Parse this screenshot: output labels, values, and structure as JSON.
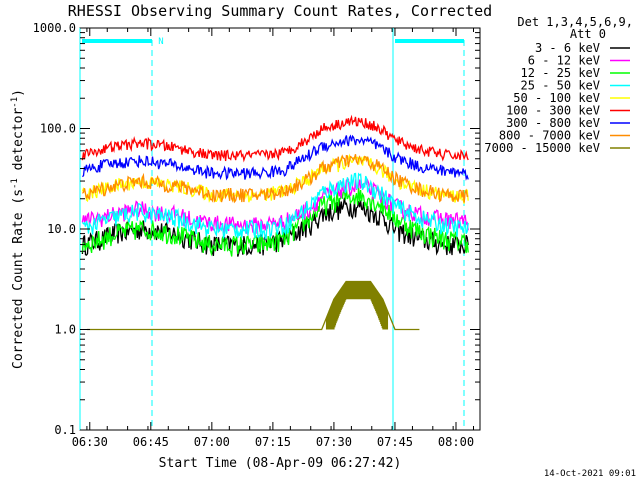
{
  "chart_data": {
    "type": "line",
    "title": "RHESSI Observing Summary Count Rates, Corrected",
    "xlabel": "Start Time (08-Apr-09 06:27:42)",
    "ylabel_main": "Corrected Count Rate (s",
    "ylabel_sup1": "-1",
    "ylabel_mid": " detector",
    "ylabel_sup2": "-1",
    "ylabel_end": ")",
    "y_scale": "log",
    "ylim": [
      0.1,
      1000
    ],
    "xlim_minutes": [
      6.46,
      8.0983
    ],
    "x_ticks": [
      {
        "value": 6.5,
        "label": "06:30"
      },
      {
        "value": 6.75,
        "label": "06:45"
      },
      {
        "value": 7.0,
        "label": "07:00"
      },
      {
        "value": 7.25,
        "label": "07:15"
      },
      {
        "value": 7.5,
        "label": "07:30"
      },
      {
        "value": 7.75,
        "label": "07:45"
      },
      {
        "value": 8.0,
        "label": "08:00"
      }
    ],
    "y_ticks": [
      {
        "value": 1000,
        "label": "1000.0"
      },
      {
        "value": 100,
        "label": "100.0"
      },
      {
        "value": 10,
        "label": "10.0"
      },
      {
        "value": 1,
        "label": "1.0"
      },
      {
        "value": 0.1,
        "label": "0.1"
      }
    ],
    "legend_header": [
      "Det 1,3,4,5,6,9,",
      "Att 0"
    ],
    "legend_position": "right",
    "series": [
      {
        "name": "3 - 6 keV",
        "color": "#000000",
        "x": [
          6.47,
          6.55,
          6.6,
          6.7,
          6.75,
          6.85,
          6.95,
          7.0,
          7.1,
          7.2,
          7.3,
          7.4,
          7.45,
          7.55,
          7.6,
          7.65,
          7.7,
          7.75,
          7.85,
          7.95,
          8.05
        ],
        "y": [
          7,
          8,
          9,
          10,
          10,
          9,
          7.5,
          7,
          7,
          7,
          8,
          11,
          14,
          17,
          17,
          15,
          13,
          10,
          8,
          7,
          7
        ]
      },
      {
        "name": "6 - 12 keV",
        "color": "#ff00ff",
        "x": [
          6.47,
          6.55,
          6.6,
          6.7,
          6.75,
          6.85,
          6.95,
          7.0,
          7.1,
          7.2,
          7.3,
          7.4,
          7.45,
          7.55,
          7.6,
          7.65,
          7.7,
          7.75,
          7.85,
          7.95,
          8.05
        ],
        "y": [
          12,
          13,
          14,
          16,
          15,
          14,
          12,
          11.5,
          11,
          11,
          12,
          16,
          21,
          26,
          27,
          25,
          21,
          17,
          14,
          12.5,
          12
        ]
      },
      {
        "name": "12 - 25 keV",
        "color": "#00ff00",
        "x": [
          6.47,
          6.55,
          6.6,
          6.7,
          6.75,
          6.85,
          6.95,
          7.0,
          7.1,
          7.2,
          7.3,
          7.4,
          7.45,
          7.55,
          7.6,
          7.65,
          7.7,
          7.75,
          7.85,
          7.95,
          8.05
        ],
        "y": [
          7,
          8,
          9,
          10,
          10,
          9,
          7.5,
          7,
          7,
          7,
          8,
          13,
          17,
          21,
          22,
          20,
          17,
          13,
          9.5,
          8,
          7.5
        ]
      },
      {
        "name": "25 - 50 keV",
        "color": "#00ffff",
        "x": [
          6.47,
          6.55,
          6.6,
          6.7,
          6.75,
          6.85,
          6.95,
          7.0,
          7.1,
          7.2,
          7.3,
          7.4,
          7.45,
          7.55,
          7.6,
          7.65,
          7.7,
          7.75,
          7.85,
          7.95,
          8.05
        ],
        "y": [
          10,
          12,
          13,
          15,
          14,
          13,
          11,
          10,
          10,
          10,
          11,
          17,
          23,
          29,
          30,
          27,
          22,
          17,
          13,
          11,
          10
        ]
      },
      {
        "name": "50 - 100 keV",
        "color": "#ffff00",
        "x": [
          6.47,
          6.55,
          6.6,
          6.7,
          6.75,
          6.85,
          6.95,
          7.0,
          7.1,
          7.2,
          7.3,
          7.4,
          7.45,
          7.55,
          7.6,
          7.65,
          7.7,
          7.75,
          7.85,
          7.95,
          8.05
        ],
        "y": [
          22,
          25,
          27,
          30,
          29,
          27,
          24,
          22,
          22,
          22,
          24,
          32,
          40,
          46,
          47,
          44,
          38,
          31,
          25,
          22,
          21
        ]
      },
      {
        "name": "100 - 300 keV",
        "color": "#ff0000",
        "x": [
          6.47,
          6.55,
          6.6,
          6.7,
          6.75,
          6.85,
          6.95,
          7.0,
          7.1,
          7.2,
          7.3,
          7.4,
          7.45,
          7.55,
          7.6,
          7.65,
          7.7,
          7.75,
          7.85,
          7.95,
          8.05
        ],
        "y": [
          55,
          62,
          66,
          72,
          70,
          65,
          57,
          54,
          54,
          54,
          58,
          80,
          100,
          117,
          118,
          110,
          95,
          77,
          62,
          55,
          53
        ]
      },
      {
        "name": "300 - 800 keV",
        "color": "#0000ff",
        "x": [
          6.47,
          6.55,
          6.6,
          6.7,
          6.75,
          6.85,
          6.95,
          7.0,
          7.1,
          7.2,
          7.3,
          7.4,
          7.45,
          7.55,
          7.6,
          7.65,
          7.7,
          7.75,
          7.85,
          7.95,
          8.05
        ],
        "y": [
          38,
          43,
          45,
          48,
          47,
          43,
          38,
          36,
          36,
          36,
          39,
          55,
          67,
          76,
          77,
          72,
          62,
          52,
          42,
          38,
          36
        ]
      },
      {
        "name": "800 - 7000 keV",
        "color": "#ff8c00",
        "x": [
          6.47,
          6.55,
          6.6,
          6.7,
          6.75,
          6.85,
          6.95,
          7.0,
          7.1,
          7.2,
          7.3,
          7.4,
          7.45,
          7.55,
          7.6,
          7.65,
          7.7,
          7.75,
          7.85,
          7.95,
          8.05
        ],
        "y": [
          22,
          25,
          27,
          30,
          29,
          27,
          24,
          22,
          22,
          22,
          24,
          32,
          40,
          48,
          49,
          46,
          40,
          32,
          25,
          22,
          21
        ]
      },
      {
        "name": "7000 - 15000 keV",
        "color": "#808000",
        "x": [
          6.4883,
          6.5,
          6.6,
          6.7,
          6.75,
          6.78,
          6.8,
          6.85,
          7.1,
          7.2,
          7.3,
          7.45,
          7.5,
          7.55,
          7.6,
          7.65,
          7.7,
          7.75,
          7.8,
          7.85
        ],
        "y": [
          1,
          1,
          1,
          1,
          1,
          1,
          1,
          1,
          1,
          1,
          1,
          1,
          2,
          3,
          3,
          3,
          2,
          1,
          1,
          1
        ]
      }
    ],
    "annotations": {
      "attenuator_flag_label": "N",
      "footer_date": "14-Oct-2021 09:01"
    }
  }
}
